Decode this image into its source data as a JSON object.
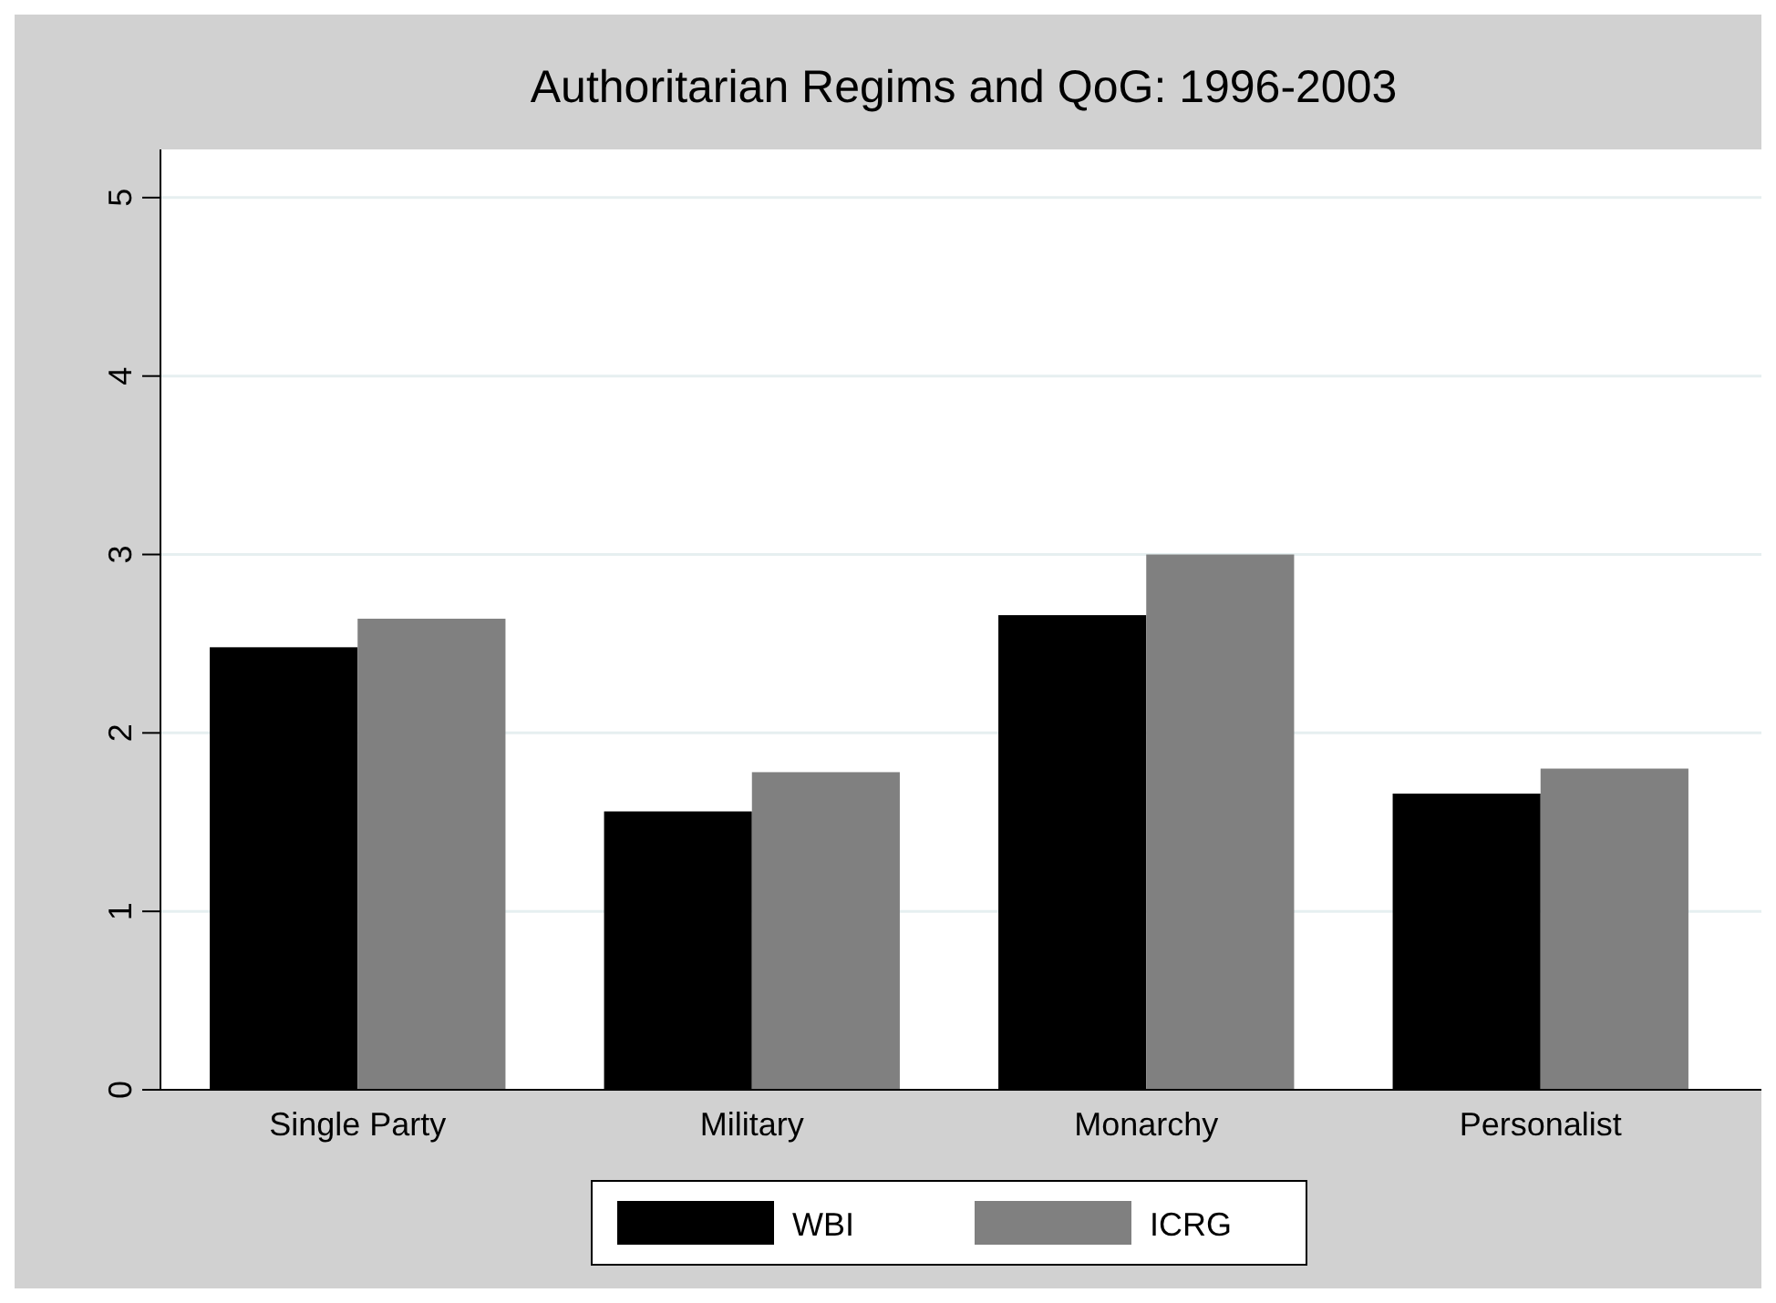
{
  "chart_data": {
    "type": "bar",
    "title": "Authoritarian Regims and QoG: 1996-2003",
    "categories": [
      "Single Party",
      "Military",
      "Monarchy",
      "Personalist"
    ],
    "series": [
      {
        "name": "WBI",
        "color": "#000000",
        "values": [
          2.48,
          1.56,
          2.66,
          1.66
        ]
      },
      {
        "name": "ICRG",
        "color": "#808080",
        "values": [
          2.64,
          1.78,
          3.0,
          1.8
        ]
      }
    ],
    "ylim": [
      0,
      5.27
    ],
    "yticks": [
      0,
      1,
      2,
      3,
      4,
      5
    ],
    "grid": "y",
    "legend": "bottom"
  }
}
